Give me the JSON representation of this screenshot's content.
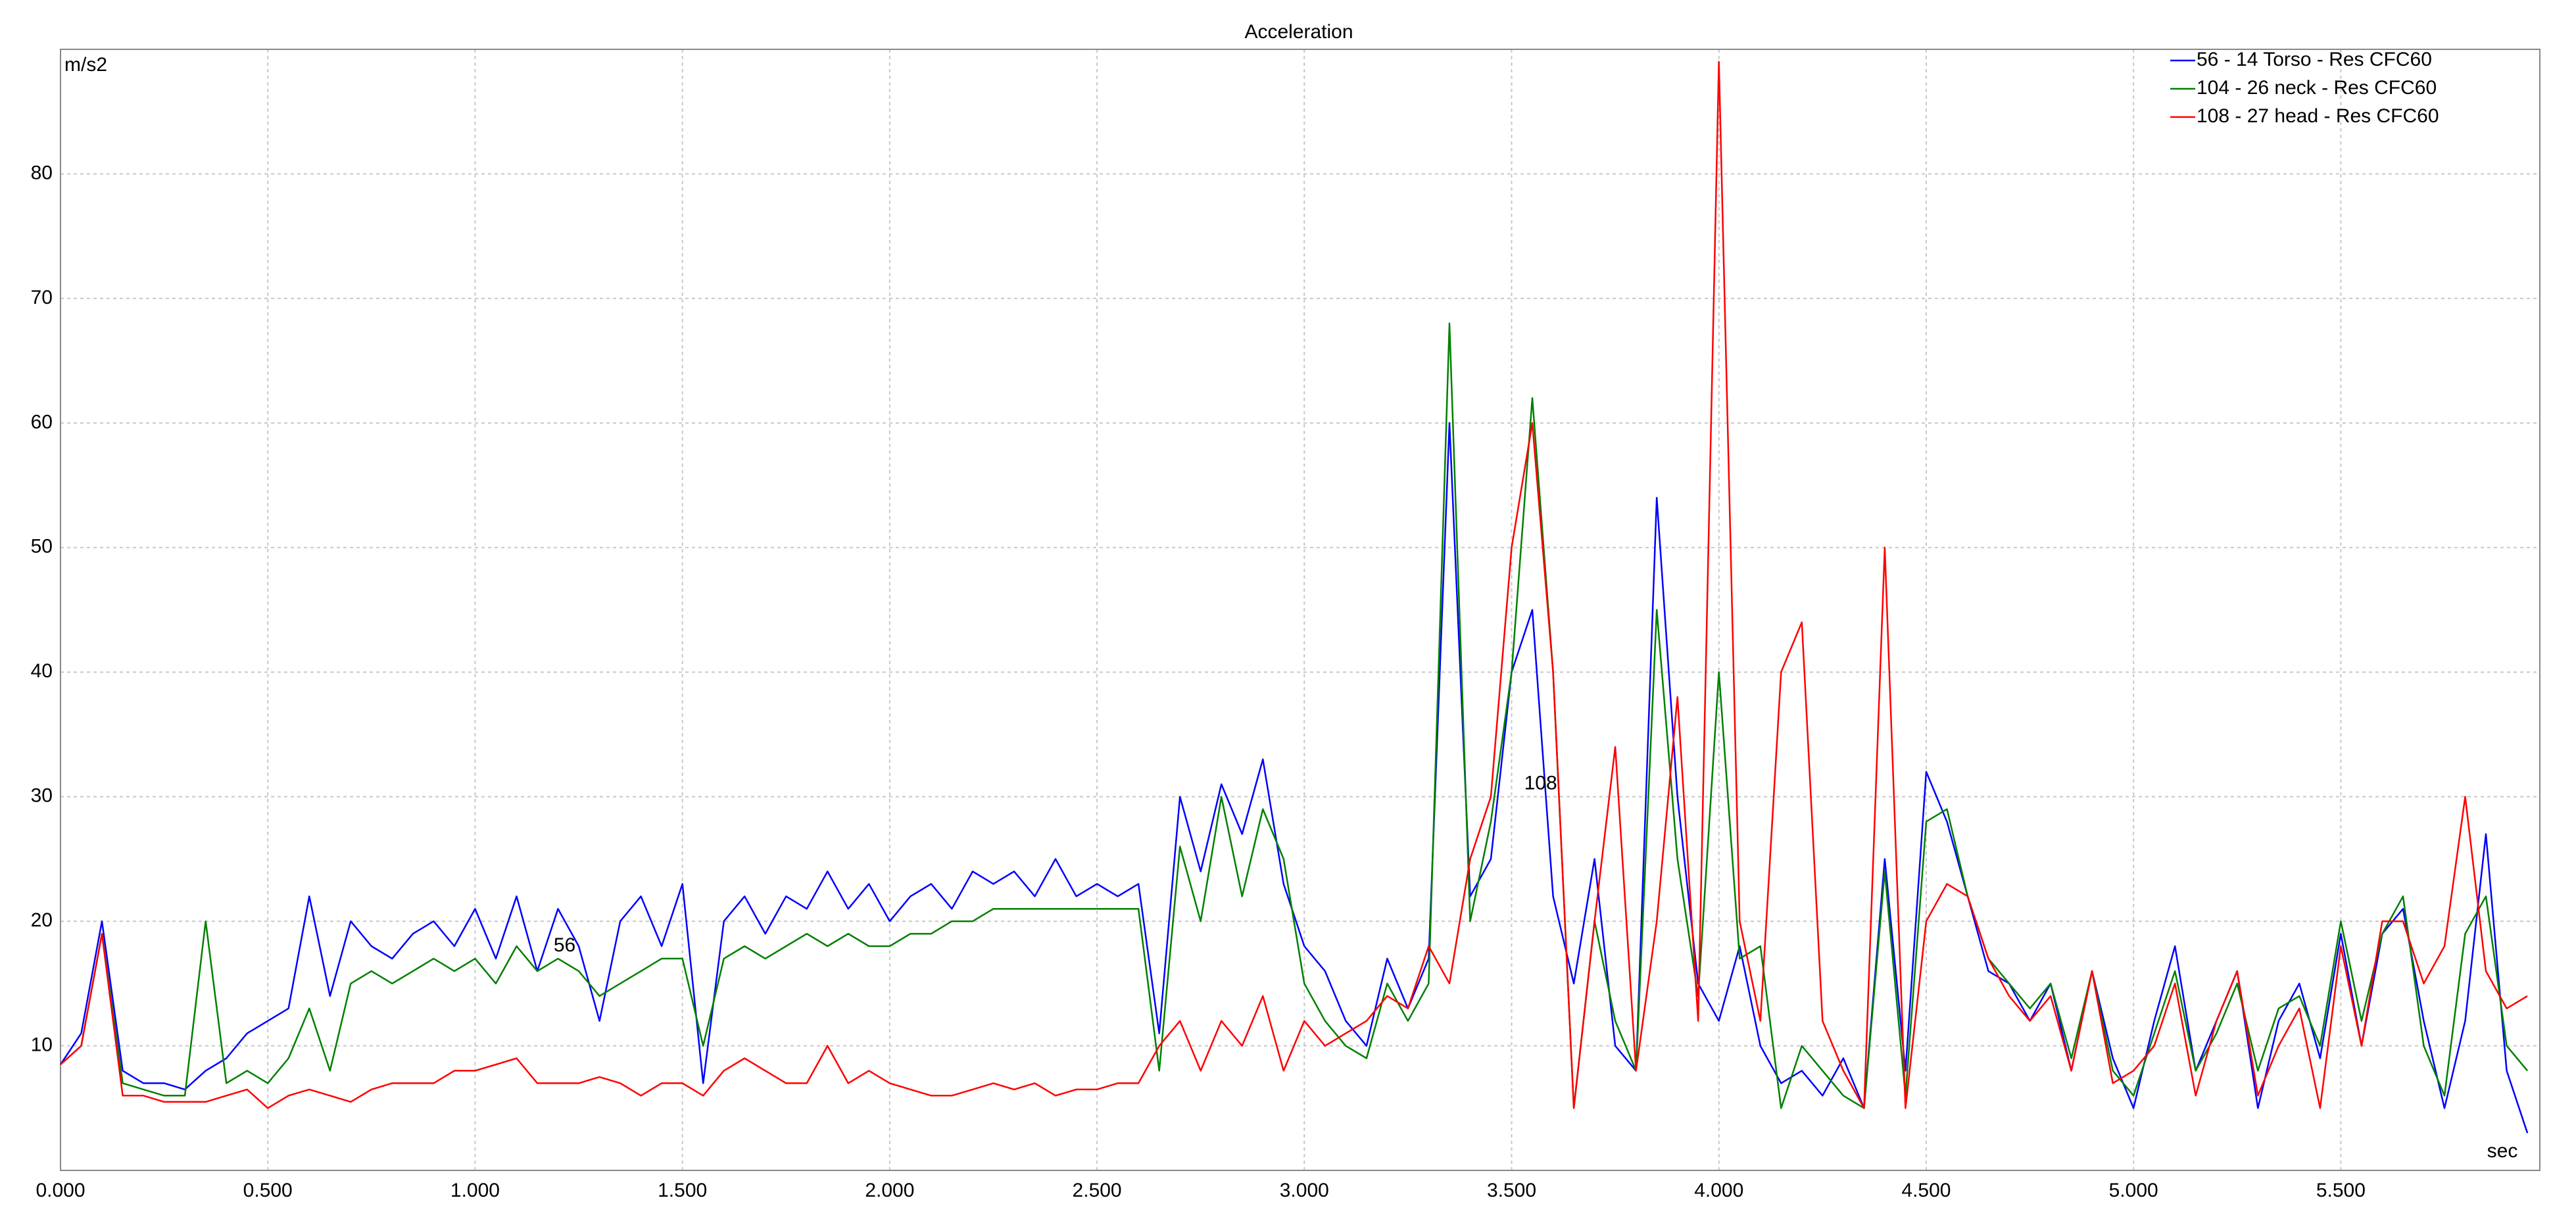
{
  "chart_data": {
    "type": "line",
    "title": "Acceleration",
    "y_label": "m/s2",
    "x_label": "sec",
    "annotations": [
      "56",
      "108"
    ],
    "x": [
      0,
      0.05,
      0.1,
      0.15,
      0.2,
      0.25,
      0.3,
      0.35,
      0.4,
      0.45,
      0.5,
      0.55,
      0.6,
      0.65,
      0.7,
      0.75,
      0.8,
      0.85,
      0.9,
      0.95,
      1,
      1.05,
      1.1,
      1.15,
      1.2,
      1.25,
      1.3,
      1.35,
      1.4,
      1.45,
      1.5,
      1.55,
      1.6,
      1.65,
      1.7,
      1.75,
      1.8,
      1.85,
      1.9,
      1.95,
      2,
      2.05,
      2.1,
      2.15,
      2.2,
      2.25,
      2.3,
      2.35,
      2.4,
      2.45,
      2.5,
      2.55,
      2.6,
      2.65,
      2.7,
      2.75,
      2.8,
      2.85,
      2.9,
      2.95,
      3,
      3.05,
      3.1,
      3.15,
      3.2,
      3.25,
      3.3,
      3.35,
      3.4,
      3.45,
      3.5,
      3.55,
      3.6,
      3.65,
      3.7,
      3.75,
      3.8,
      3.85,
      3.9,
      3.95,
      4,
      4.05,
      4.1,
      4.15,
      4.2,
      4.25,
      4.3,
      4.35,
      4.4,
      4.45,
      4.5,
      4.55,
      4.6,
      4.65,
      4.7,
      4.75,
      4.8,
      4.85,
      4.9,
      4.95,
      5,
      5.05,
      5.1,
      5.15,
      5.2,
      5.25,
      5.3,
      5.35,
      5.4,
      5.45,
      5.5,
      5.55,
      5.6,
      5.65,
      5.7,
      5.75,
      5.8,
      5.85,
      5.9,
      5.95
    ],
    "series": [
      {
        "name": "56 - 14 Torso - Res CFC60",
        "color": "#0000ff",
        "values": [
          8.5,
          11,
          20,
          8,
          7,
          7,
          6.5,
          8,
          9,
          11,
          12,
          13,
          22,
          14,
          20,
          18,
          17,
          19,
          20,
          18,
          21,
          17,
          22,
          16,
          21,
          18,
          12,
          20,
          22,
          18,
          23,
          7,
          20,
          22,
          19,
          22,
          21,
          24,
          21,
          23,
          20,
          22,
          23,
          21,
          24,
          23,
          24,
          22,
          25,
          22,
          23,
          22,
          23,
          11,
          30,
          24,
          31,
          27,
          33,
          23,
          18,
          16,
          12,
          10,
          17,
          13,
          17,
          60,
          22,
          25,
          40,
          45,
          22,
          15,
          25,
          10,
          8,
          54,
          30,
          15,
          12,
          18,
          10,
          7,
          8,
          6,
          9,
          5,
          25,
          8,
          32,
          28,
          22,
          16,
          15,
          12,
          15,
          8,
          16,
          9,
          5,
          12,
          18,
          8,
          12,
          16,
          5,
          12,
          15,
          9,
          19,
          10,
          19,
          21,
          12,
          5,
          12,
          27,
          8,
          3
        ]
      },
      {
        "name": "104 - 26 neck - Res CFC60",
        "color": "#008000",
        "values": [
          8.5,
          10,
          19,
          7,
          6.5,
          6,
          6,
          20,
          7,
          8,
          7,
          9,
          13,
          8,
          15,
          16,
          15,
          16,
          17,
          16,
          17,
          15,
          18,
          16,
          17,
          16,
          14,
          15,
          16,
          17,
          17,
          10,
          17,
          18,
          17,
          18,
          19,
          18,
          19,
          18,
          18,
          19,
          19,
          20,
          20,
          21,
          21,
          21,
          21,
          21,
          21,
          21,
          21,
          8,
          26,
          20,
          30,
          22,
          29,
          25,
          15,
          12,
          10,
          9,
          15,
          12,
          15,
          68,
          20,
          28,
          40,
          62,
          40,
          5,
          20,
          12,
          8,
          45,
          25,
          14,
          40,
          17,
          18,
          5,
          10,
          8,
          6,
          5,
          24,
          6,
          28,
          29,
          22,
          17,
          15,
          13,
          15,
          9,
          16,
          8,
          6,
          11,
          16,
          8,
          11,
          15,
          8,
          13,
          14,
          10,
          20,
          12,
          19,
          22,
          10,
          6,
          19,
          22,
          10,
          8
        ]
      },
      {
        "name": "108 - 27 head - Res CFC60",
        "color": "#ff0000",
        "values": [
          8.5,
          10,
          19,
          6,
          6,
          5.5,
          5.5,
          5.5,
          6,
          6.5,
          5,
          6,
          6.5,
          6,
          5.5,
          6.5,
          7,
          7,
          7,
          8,
          8,
          8.5,
          9,
          7,
          7,
          7,
          7.5,
          7,
          6,
          7,
          7,
          6,
          8,
          9,
          8,
          7,
          7,
          10,
          7,
          8,
          7,
          6.5,
          6,
          6,
          6.5,
          7,
          6.5,
          7,
          6,
          6.5,
          6.5,
          7,
          7,
          10,
          12,
          8,
          12,
          10,
          14,
          8,
          12,
          10,
          11,
          12,
          14,
          13,
          18,
          15,
          25,
          30,
          50,
          60,
          40,
          5,
          20,
          34,
          8,
          20,
          38,
          12,
          89,
          20,
          12,
          40,
          44,
          12,
          8,
          5,
          50,
          5,
          20,
          23,
          22,
          17,
          14,
          12,
          14,
          8,
          16,
          7,
          8,
          10,
          15,
          6,
          12,
          16,
          6,
          10,
          13,
          5,
          18,
          10,
          20,
          20,
          15,
          18,
          30,
          16,
          13,
          14
        ]
      }
    ],
    "xlim": [
      0,
      5.98
    ],
    "ylim": [
      0,
      90
    ],
    "xticks": [
      {
        "value": 0,
        "label": "0.000"
      },
      {
        "value": 0.5,
        "label": "0.500"
      },
      {
        "value": 1,
        "label": "1.000"
      },
      {
        "value": 1.5,
        "label": "1.500"
      },
      {
        "value": 2,
        "label": "2.000"
      },
      {
        "value": 2.5,
        "label": "2.500"
      },
      {
        "value": 3,
        "label": "3.000"
      },
      {
        "value": 3.5,
        "label": "3.500"
      },
      {
        "value": 4,
        "label": "4.000"
      },
      {
        "value": 4.5,
        "label": "4.500"
      },
      {
        "value": 5,
        "label": "5.000"
      },
      {
        "value": 5.5,
        "label": "5.500"
      }
    ],
    "yticks": [
      10,
      20,
      30,
      40,
      50,
      60,
      70,
      80
    ],
    "grid": true,
    "legend": "top-right"
  }
}
